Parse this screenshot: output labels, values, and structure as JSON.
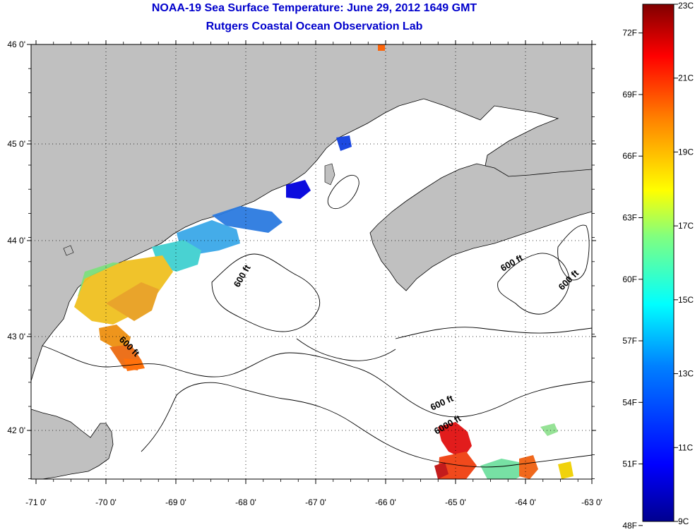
{
  "title": "NOAA-19 Sea Surface Temperature:  June 29, 2012 1649 GMT",
  "subtitle": "Rutgers Coastal Ocean Observation Lab",
  "map": {
    "lat_ticks": [
      "46 0'",
      "45 0'",
      "44 0'",
      "43 0'",
      "42 0'"
    ],
    "lon_ticks": [
      "-71 0'",
      "-70 0'",
      "-69 0'",
      "-68 0'",
      "-67 0'",
      "-66 0'",
      "-65 0'",
      "-64 0'",
      "-63 0'"
    ],
    "land_color": "#c0c0c0",
    "grid": "dotted",
    "contour_labels": [
      "600 ft",
      "600 ft",
      "600 ft",
      "600 ft",
      "600 ft",
      "6000 ft"
    ]
  },
  "colorbar": {
    "f_ticks": [
      "72F",
      "69F",
      "66F",
      "63F",
      "60F",
      "57F",
      "54F",
      "51F",
      "48F"
    ],
    "c_ticks": [
      "23C",
      "21C",
      "19C",
      "17C",
      "15C",
      "13C",
      "11C",
      "9C"
    ],
    "range_c": [
      9,
      23
    ],
    "colors": [
      "#00008f",
      "#0000ff",
      "#0080ff",
      "#00ffff",
      "#80ff80",
      "#ffff00",
      "#ff8000",
      "#ff0000",
      "#800000"
    ]
  }
}
